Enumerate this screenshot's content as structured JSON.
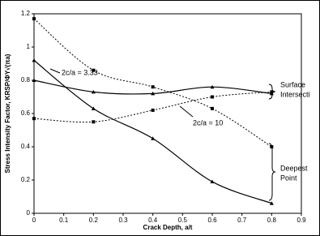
{
  "chart_data": {
    "type": "line",
    "x_label": "Crack Depth, a/t",
    "y_label": "Stress Intensity Factor, KRSP/ΦY√(πa)",
    "xlim": [
      0,
      0.9
    ],
    "xticks": [
      0,
      0.1,
      0.2,
      0.3,
      0.4,
      0.5,
      0.6,
      0.7,
      0.8,
      0.9
    ],
    "ylim": [
      0,
      1.2
    ],
    "yticks": [
      0,
      0.2,
      0.4,
      0.6,
      0.8,
      1,
      1.2
    ],
    "series": [
      {
        "color": "#000000",
        "dash": "solid",
        "marker": "triangle",
        "x": [
          0,
          0.2,
          0.4,
          0.6,
          0.8
        ],
        "values": [
          0.8,
          0.73,
          0.72,
          0.76,
          0.72
        ]
      },
      {
        "color": "#000000",
        "dash": "solid",
        "marker": "triangle",
        "x": [
          0,
          0.2,
          0.4,
          0.6,
          0.8
        ],
        "values": [
          0.92,
          0.63,
          0.45,
          0.19,
          0.06
        ]
      },
      {
        "color": "#000000",
        "dash": "dotted",
        "marker": "square",
        "x": [
          0,
          0.2,
          0.4,
          0.6,
          0.8
        ],
        "values": [
          0.57,
          0.55,
          0.62,
          0.7,
          0.73
        ]
      },
      {
        "color": "#000000",
        "dash": "dotted",
        "marker": "square",
        "x": [
          0,
          0.2,
          0.4,
          0.6,
          0.8
        ],
        "values": [
          1.17,
          0.86,
          0.76,
          0.63,
          0.4
        ]
      }
    ],
    "annotations": [
      "2c/a = 3.33",
      "2c/a = 10",
      "Surface",
      "Intersecti",
      "Deepest",
      "Point"
    ]
  }
}
